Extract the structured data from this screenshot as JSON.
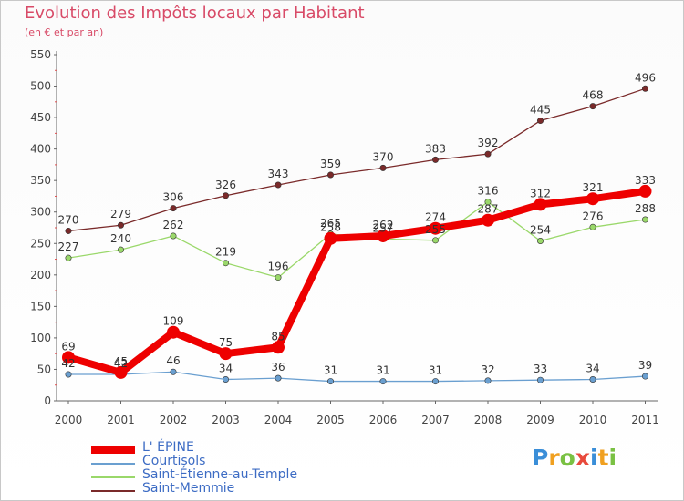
{
  "title": "Evolution des Impôts locaux par Habitant",
  "subtitle": "(en € et par an)",
  "logo": {
    "letters": [
      {
        "char": "P",
        "color": "#3a8ed8"
      },
      {
        "char": "r",
        "color": "#f0a020"
      },
      {
        "char": "o",
        "color": "#7ac143"
      },
      {
        "char": "x",
        "color": "#e84a3c"
      },
      {
        "char": "i",
        "color": "#3a8ed8"
      },
      {
        "char": "t",
        "color": "#f0a020"
      },
      {
        "char": "i",
        "color": "#7ac143"
      }
    ]
  },
  "chart_data": {
    "type": "line",
    "title": "Evolution des Impôts locaux par Habitant",
    "subtitle": "(en € et par an)",
    "xlabel": "",
    "ylabel": "",
    "x": [
      "2000",
      "2001",
      "2002",
      "2003",
      "2004",
      "2005",
      "2006",
      "2007",
      "2008",
      "2009",
      "2010",
      "2011"
    ],
    "ylim": [
      0,
      550
    ],
    "yticks": [
      0,
      50,
      100,
      150,
      200,
      250,
      300,
      350,
      400,
      450,
      500,
      550
    ],
    "grid": false,
    "legend_position": "bottom-left",
    "series": [
      {
        "name": "L' ÉPINE",
        "color": "#ee0000",
        "values": [
          69,
          45,
          109,
          75,
          85,
          258,
          262,
          274,
          287,
          312,
          321,
          333
        ],
        "labels": [
          "69",
          "45",
          "109",
          "75",
          "85",
          "258",
          "262",
          "274",
          "287",
          "312",
          "321",
          "333"
        ],
        "emphasis": true
      },
      {
        "name": "Courtisols",
        "color": "#6a9fd0",
        "values": [
          42,
          42,
          46,
          34,
          36,
          31,
          31,
          31,
          32,
          33,
          34,
          39
        ],
        "labels": [
          "42",
          "42",
          "46",
          "34",
          "36",
          "31",
          "31",
          "31",
          "32",
          "33",
          "34",
          "39"
        ]
      },
      {
        "name": "Saint-Étienne-au-Temple",
        "color": "#9ad86a",
        "values": [
          227,
          240,
          262,
          219,
          196,
          265,
          257,
          255,
          316,
          254,
          276,
          288
        ],
        "labels": [
          "227",
          "240",
          "262",
          "219",
          "196",
          "265",
          "257",
          "255",
          "316",
          "254",
          "276",
          "288"
        ]
      },
      {
        "name": "Saint-Memmie",
        "color": "#7a2a2a",
        "values": [
          270,
          279,
          306,
          326,
          343,
          359,
          370,
          383,
          392,
          445,
          468,
          496
        ],
        "labels": [
          "270",
          "279",
          "306",
          "326",
          "343",
          "359",
          "370",
          "383",
          "392",
          "445",
          "468",
          "496"
        ]
      }
    ]
  }
}
